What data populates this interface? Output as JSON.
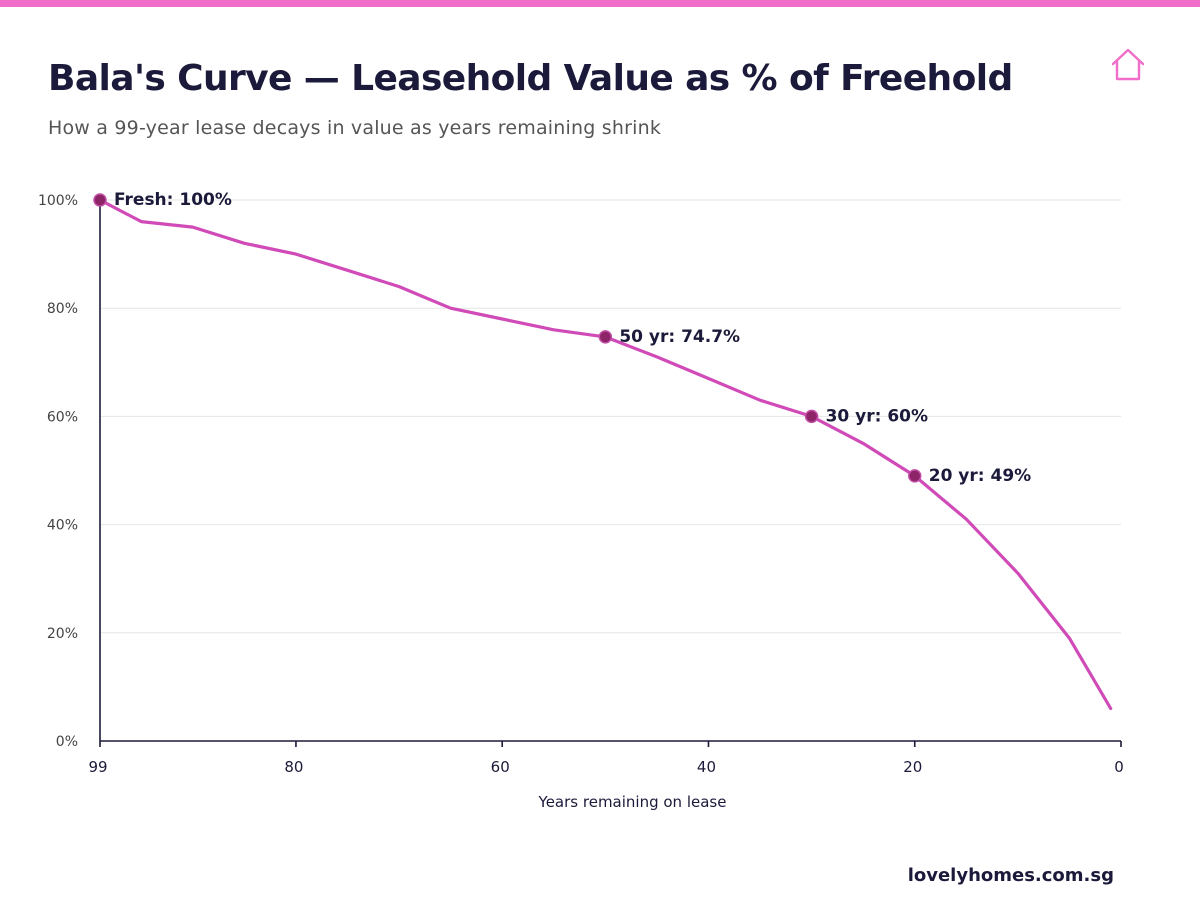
{
  "colors": {
    "accent": "#f06ec9",
    "line": "#d04ab8",
    "marker": "#8e2468",
    "title": "#1b1a3a",
    "grid": "#e6e6e6"
  },
  "header": {
    "title": "Bala's Curve — Leasehold Value as % of Freehold",
    "subtitle": "How a 99-year lease decays in value as years remaining shrink",
    "icon": "house-icon"
  },
  "footer": {
    "site": "lovelyhomes.com.sg"
  },
  "chart_data": {
    "type": "line",
    "title": "Bala's Curve — Leasehold Value as % of Freehold",
    "subtitle": "How a 99-year lease decays in value as years remaining shrink",
    "xlabel": "Years remaining on lease",
    "ylabel": "",
    "xlim": [
      99,
      0
    ],
    "ylim": [
      0,
      100
    ],
    "x_reversed": true,
    "grid": true,
    "x_ticks": [
      99,
      80,
      60,
      40,
      20,
      0
    ],
    "y_ticks": [
      0,
      20,
      40,
      60,
      80,
      100
    ],
    "y_tick_labels": [
      "0%",
      "20%",
      "40%",
      "60%",
      "80%",
      "100%"
    ],
    "series": [
      {
        "x": [
          99,
          95,
          90,
          85,
          80,
          75,
          70,
          65,
          60,
          55,
          50,
          45,
          40,
          35,
          30,
          25,
          20,
          15,
          10,
          5,
          1
        ],
        "y": [
          100,
          96,
          95,
          92,
          90,
          87,
          84,
          80,
          78,
          76,
          74.7,
          71,
          67,
          63,
          60,
          55,
          49,
          41,
          31,
          19,
          6
        ]
      }
    ],
    "annotations": [
      {
        "x": 99,
        "y": 100,
        "label": "Fresh: 100%"
      },
      {
        "x": 50,
        "y": 74.7,
        "label": "50 yr: 74.7%"
      },
      {
        "x": 30,
        "y": 60,
        "label": "30 yr: 60%"
      },
      {
        "x": 20,
        "y": 49,
        "label": "20 yr: 49%"
      }
    ]
  }
}
